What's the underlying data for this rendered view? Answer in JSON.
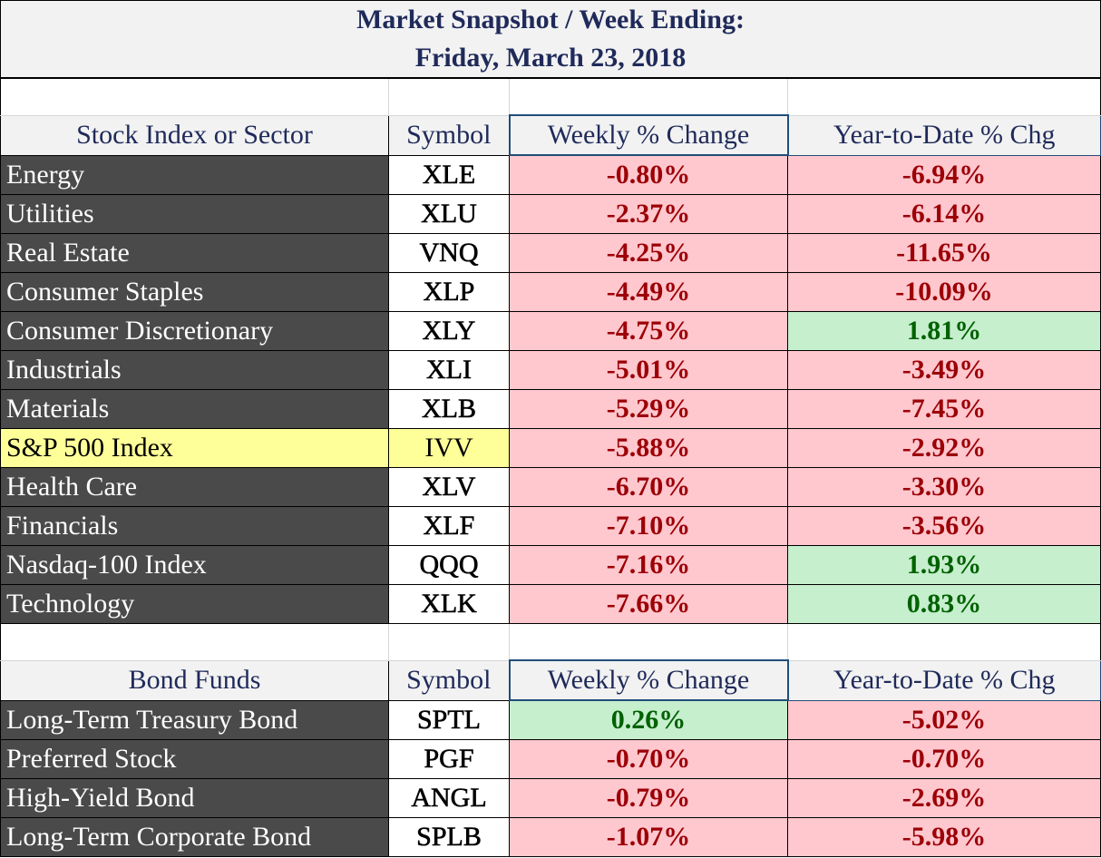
{
  "title": {
    "line1": "Market Snapshot / Week Ending:",
    "line2": "Friday, March 23, 2018"
  },
  "stock_section": {
    "headers": [
      "Stock Index or Sector",
      "Symbol",
      "Weekly % Change",
      "Year-to-Date % Chg"
    ],
    "rows": [
      {
        "name": "Energy",
        "symbol": "XLE",
        "weekly": "-0.80%",
        "ytd": "-6.94%",
        "weekly_status": "neg",
        "ytd_status": "neg",
        "highlight": false
      },
      {
        "name": "Utilities",
        "symbol": "XLU",
        "weekly": "-2.37%",
        "ytd": "-6.14%",
        "weekly_status": "neg",
        "ytd_status": "neg",
        "highlight": false
      },
      {
        "name": "Real Estate",
        "symbol": "VNQ",
        "weekly": "-4.25%",
        "ytd": "-11.65%",
        "weekly_status": "neg",
        "ytd_status": "neg",
        "highlight": false
      },
      {
        "name": "Consumer Staples",
        "symbol": "XLP",
        "weekly": "-4.49%",
        "ytd": "-10.09%",
        "weekly_status": "neg",
        "ytd_status": "neg",
        "highlight": false
      },
      {
        "name": "Consumer Discretionary",
        "symbol": "XLY",
        "weekly": "-4.75%",
        "ytd": "1.81%",
        "weekly_status": "neg",
        "ytd_status": "pos",
        "highlight": false
      },
      {
        "name": "Industrials",
        "symbol": "XLI",
        "weekly": "-5.01%",
        "ytd": "-3.49%",
        "weekly_status": "neg",
        "ytd_status": "neg",
        "highlight": false
      },
      {
        "name": "Materials",
        "symbol": "XLB",
        "weekly": "-5.29%",
        "ytd": "-7.45%",
        "weekly_status": "neg",
        "ytd_status": "neg",
        "highlight": false
      },
      {
        "name": "S&P 500 Index",
        "symbol": "IVV",
        "weekly": "-5.88%",
        "ytd": "-2.92%",
        "weekly_status": "neg",
        "ytd_status": "neg",
        "highlight": true
      },
      {
        "name": "Health Care",
        "symbol": "XLV",
        "weekly": "-6.70%",
        "ytd": "-3.30%",
        "weekly_status": "neg",
        "ytd_status": "neg",
        "highlight": false
      },
      {
        "name": "Financials",
        "symbol": "XLF",
        "weekly": "-7.10%",
        "ytd": "-3.56%",
        "weekly_status": "neg",
        "ytd_status": "neg",
        "highlight": false
      },
      {
        "name": "Nasdaq-100 Index",
        "symbol": "QQQ",
        "weekly": "-7.16%",
        "ytd": "1.93%",
        "weekly_status": "neg",
        "ytd_status": "pos",
        "highlight": false
      },
      {
        "name": "Technology",
        "symbol": "XLK",
        "weekly": "-7.66%",
        "ytd": "0.83%",
        "weekly_status": "neg",
        "ytd_status": "pos",
        "highlight": false
      }
    ]
  },
  "bond_section": {
    "headers": [
      "Bond Funds",
      "Symbol",
      "Weekly % Change",
      "Year-to-Date % Chg"
    ],
    "rows": [
      {
        "name": "Long-Term Treasury Bond",
        "symbol": "SPTL",
        "weekly": "0.26%",
        "ytd": "-5.02%",
        "weekly_status": "pos",
        "ytd_status": "neg",
        "highlight": false
      },
      {
        "name": "Preferred Stock",
        "symbol": "PGF",
        "weekly": "-0.70%",
        "ytd": "-0.70%",
        "weekly_status": "neg",
        "ytd_status": "neg",
        "highlight": false
      },
      {
        "name": "High-Yield Bond",
        "symbol": "ANGL",
        "weekly": "-0.79%",
        "ytd": "-2.69%",
        "weekly_status": "neg",
        "ytd_status": "neg",
        "highlight": false
      },
      {
        "name": "Long-Term Corporate Bond",
        "symbol": "SPLB",
        "weekly": "-1.07%",
        "ytd": "-5.98%",
        "weekly_status": "neg",
        "ytd_status": "neg",
        "highlight": false
      }
    ]
  },
  "colors": {
    "negative_fill": "#ffc7ce",
    "negative_text": "#9c0006",
    "positive_fill": "#c6efce",
    "positive_text": "#006100",
    "name_cell_fill": "#4a4a4a",
    "highlight_fill": "#ffff99",
    "header_text": "#1f2a5a"
  }
}
